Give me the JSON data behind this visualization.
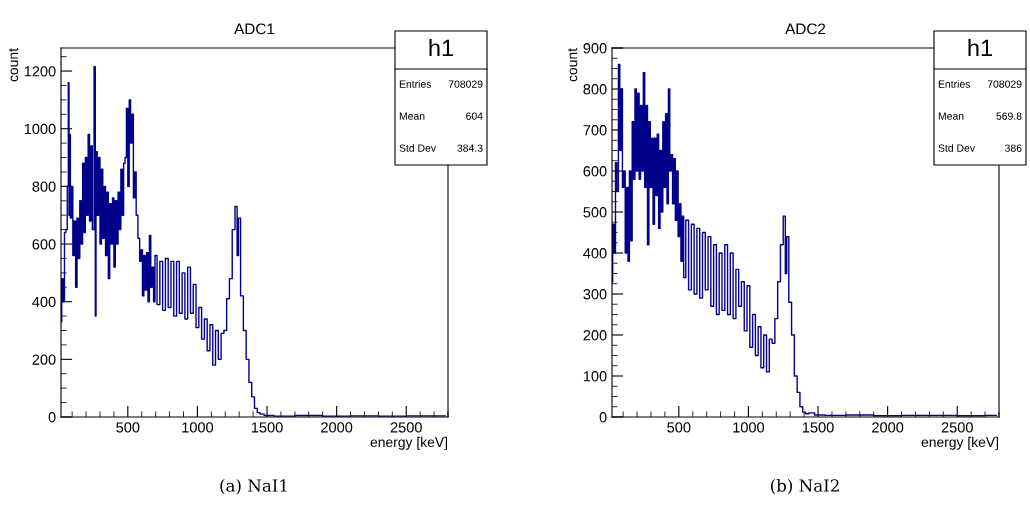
{
  "chart_data": [
    {
      "type": "step",
      "title": "ADC1",
      "xlabel": "energy [keV]",
      "ylabel": "count",
      "xlim": [
        20,
        2800
      ],
      "xticks": [
        500,
        1000,
        1500,
        2000,
        2500
      ],
      "ylim": [
        0,
        1280
      ],
      "yticks": [
        0,
        200,
        400,
        600,
        800,
        1000,
        1200
      ],
      "grid": false,
      "annotations": [
        "(a) NaI1",
        "h1",
        "Entries",
        "708029",
        "Mean",
        "604",
        "Std Dev",
        "384.3"
      ],
      "series": [
        {
          "color": "#00008b",
          "x": [
            20,
            30,
            40,
            50,
            60,
            70,
            75,
            80,
            85,
            90,
            100,
            110,
            120,
            130,
            140,
            150,
            160,
            170,
            180,
            190,
            200,
            210,
            220,
            230,
            240,
            250,
            265,
            268,
            275,
            285,
            295,
            305,
            315,
            325,
            335,
            345,
            355,
            365,
            375,
            385,
            395,
            405,
            415,
            425,
            435,
            445,
            455,
            465,
            475,
            485,
            495,
            505,
            515,
            525,
            535,
            545,
            555,
            565,
            580,
            590,
            600,
            610,
            620,
            630,
            640,
            650,
            660,
            670,
            680,
            690,
            700,
            720,
            740,
            760,
            780,
            800,
            820,
            840,
            860,
            880,
            900,
            920,
            940,
            960,
            980,
            1000,
            1020,
            1040,
            1060,
            1080,
            1100,
            1120,
            1140,
            1160,
            1180,
            1200,
            1220,
            1240,
            1260,
            1280,
            1290,
            1300,
            1320,
            1340,
            1360,
            1380,
            1400,
            1420,
            1440,
            1460,
            1500,
            1600,
            1800,
            2000,
            2200,
            2400,
            2600,
            2780
          ],
          "values": [
            330,
            480,
            400,
            640,
            650,
            800,
            1160,
            700,
            980,
            690,
            800,
            560,
            680,
            450,
            690,
            550,
            750,
            600,
            880,
            640,
            900,
            700,
            980,
            680,
            940,
            650,
            1215,
            350,
            920,
            700,
            900,
            600,
            860,
            620,
            800,
            560,
            780,
            480,
            740,
            600,
            760,
            520,
            750,
            600,
            780,
            650,
            860,
            700,
            880,
            900,
            1070,
            800,
            1100,
            950,
            1050,
            760,
            850,
            700,
            620,
            540,
            580,
            420,
            560,
            440,
            570,
            400,
            630,
            450,
            520,
            400,
            560,
            390,
            540,
            370,
            550,
            380,
            540,
            350,
            540,
            360,
            500,
            340,
            520,
            360,
            460,
            310,
            380,
            270,
            340,
            230,
            320,
            180,
            300,
            200,
            290,
            300,
            410,
            480,
            650,
            730,
            560,
            690,
            420,
            300,
            200,
            120,
            70,
            30,
            15,
            10,
            5,
            3,
            5,
            3,
            4,
            3,
            4,
            4
          ]
        }
      ]
    },
    {
      "type": "step",
      "title": "ADC2",
      "xlabel": "energy [keV]",
      "ylabel": "count",
      "xlim": [
        20,
        2800
      ],
      "xticks": [
        500,
        1000,
        1500,
        2000,
        2500
      ],
      "ylim": [
        0,
        900
      ],
      "yticks": [
        0,
        100,
        200,
        300,
        400,
        500,
        600,
        700,
        800,
        900
      ],
      "grid": false,
      "annotations": [
        "(b) NaI2",
        "h1",
        "Entries",
        "708029",
        "Mean",
        "569.8",
        "Std Dev",
        "386"
      ],
      "series": [
        {
          "color": "#00008b",
          "x": [
            20,
            30,
            40,
            50,
            60,
            72,
            80,
            90,
            100,
            110,
            120,
            130,
            140,
            150,
            160,
            170,
            180,
            190,
            200,
            210,
            220,
            230,
            240,
            250,
            260,
            270,
            280,
            290,
            300,
            310,
            320,
            330,
            340,
            350,
            360,
            370,
            380,
            390,
            400,
            410,
            420,
            430,
            440,
            450,
            460,
            470,
            480,
            490,
            500,
            510,
            520,
            530,
            540,
            560,
            580,
            600,
            620,
            640,
            660,
            680,
            700,
            720,
            740,
            760,
            780,
            800,
            820,
            840,
            860,
            880,
            900,
            920,
            940,
            960,
            980,
            1000,
            1020,
            1040,
            1060,
            1080,
            1100,
            1120,
            1140,
            1160,
            1180,
            1200,
            1220,
            1240,
            1260,
            1270,
            1280,
            1300,
            1320,
            1340,
            1360,
            1380,
            1400,
            1420,
            1450,
            1500,
            1600,
            1800,
            2000,
            2200,
            2400,
            2600,
            2780
          ],
          "values": [
            330,
            470,
            400,
            620,
            550,
            860,
            650,
            800,
            560,
            600,
            400,
            560,
            380,
            600,
            430,
            720,
            580,
            800,
            600,
            790,
            580,
            760,
            600,
            840,
            560,
            760,
            420,
            720,
            560,
            680,
            470,
            680,
            540,
            690,
            460,
            650,
            500,
            720,
            560,
            740,
            520,
            800,
            600,
            640,
            520,
            630,
            480,
            600,
            440,
            520,
            380,
            490,
            340,
            480,
            310,
            470,
            300,
            460,
            290,
            450,
            310,
            440,
            270,
            420,
            250,
            400,
            260,
            420,
            250,
            400,
            240,
            360,
            270,
            330,
            210,
            320,
            170,
            250,
            150,
            220,
            120,
            200,
            110,
            190,
            180,
            240,
            330,
            420,
            490,
            350,
            440,
            280,
            200,
            100,
            60,
            25,
            12,
            8,
            10,
            5,
            4,
            5,
            3,
            4,
            4,
            3,
            4
          ]
        }
      ]
    }
  ]
}
